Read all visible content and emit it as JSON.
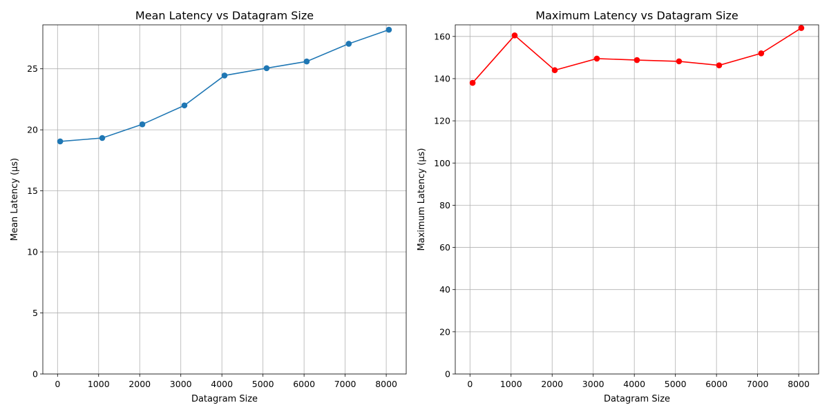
{
  "chart_data": [
    {
      "type": "line",
      "title": "Mean Latency vs Datagram Size",
      "xlabel": "Datagram Size",
      "ylabel": "Mean Latency (µs)",
      "x": [
        64,
        1088,
        2064,
        3088,
        4064,
        5088,
        6064,
        7088,
        8064
      ],
      "series": [
        {
          "name": "",
          "values": [
            19.05,
            19.33,
            20.45,
            22.0,
            24.45,
            25.05,
            25.6,
            27.05,
            28.2
          ]
        }
      ],
      "xlim": [
        -358,
        8486
      ],
      "ylim": [
        0,
        28.6
      ],
      "xticks": [
        0,
        1000,
        2000,
        3000,
        4000,
        5000,
        6000,
        7000,
        8000
      ],
      "yticks": [
        0,
        5,
        10,
        15,
        20,
        25
      ],
      "xtick_labels": [
        "0",
        "1000",
        "2000",
        "3000",
        "4000",
        "5000",
        "6000",
        "7000",
        "8000"
      ],
      "ytick_labels": [
        "0",
        "5",
        "10",
        "15",
        "20",
        "25"
      ],
      "color": "#1f77b4",
      "marker": "circle",
      "grid": true
    },
    {
      "type": "line",
      "title": "Maximum Latency vs Datagram Size",
      "xlabel": "Datagram Size",
      "ylabel": "Maximum Latency (µs)",
      "x": [
        64,
        1088,
        2064,
        3088,
        4064,
        5088,
        6064,
        7088,
        8064
      ],
      "series": [
        {
          "name": "",
          "values": [
            138,
            160.5,
            144,
            149.5,
            148.8,
            148.2,
            146.3,
            152,
            164
          ]
        }
      ],
      "xlim": [
        -358,
        8486
      ],
      "ylim": [
        0,
        165.5
      ],
      "xticks": [
        0,
        1000,
        2000,
        3000,
        4000,
        5000,
        6000,
        7000,
        8000
      ],
      "yticks": [
        0,
        20,
        40,
        60,
        80,
        100,
        120,
        140,
        160
      ],
      "xtick_labels": [
        "0",
        "1000",
        "2000",
        "3000",
        "4000",
        "5000",
        "6000",
        "7000",
        "8000"
      ],
      "ytick_labels": [
        "0",
        "20",
        "40",
        "60",
        "80",
        "100",
        "120",
        "140",
        "160"
      ],
      "color": "#ff0000",
      "marker": "circle",
      "grid": true
    }
  ]
}
